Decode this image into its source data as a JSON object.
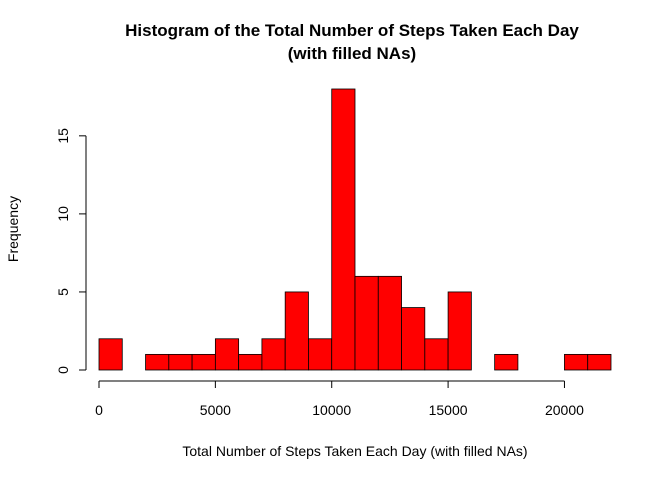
{
  "chart_data": {
    "type": "bar",
    "title": "Histogram of the Total Number of Steps Taken Each Day",
    "subtitle": "(with filled NAs)",
    "xlabel": "Total Number of Steps Taken Each Day (with filled NAs)",
    "ylabel": "Frequency",
    "bin_width": 1000,
    "bin_starts": [
      0,
      1000,
      2000,
      3000,
      4000,
      5000,
      6000,
      7000,
      8000,
      9000,
      10000,
      11000,
      12000,
      13000,
      14000,
      15000,
      16000,
      17000,
      18000,
      19000,
      20000,
      21000
    ],
    "values": [
      2,
      0,
      1,
      1,
      1,
      2,
      1,
      2,
      5,
      2,
      18,
      6,
      6,
      4,
      2,
      5,
      0,
      1,
      0,
      0,
      1,
      1
    ],
    "xlim": [
      0,
      22000
    ],
    "ylim": [
      0,
      18
    ],
    "x_ticks": [
      0,
      5000,
      10000,
      15000,
      20000
    ],
    "x_tick_labels": [
      "0",
      "5000",
      "10000",
      "15000",
      "20000"
    ],
    "y_ticks": [
      0,
      5,
      10,
      15
    ],
    "y_tick_labels": [
      "0",
      "5",
      "10",
      "15"
    ],
    "grid": false,
    "bar_color": "#ff0000",
    "bar_edge_color": "#000000"
  }
}
